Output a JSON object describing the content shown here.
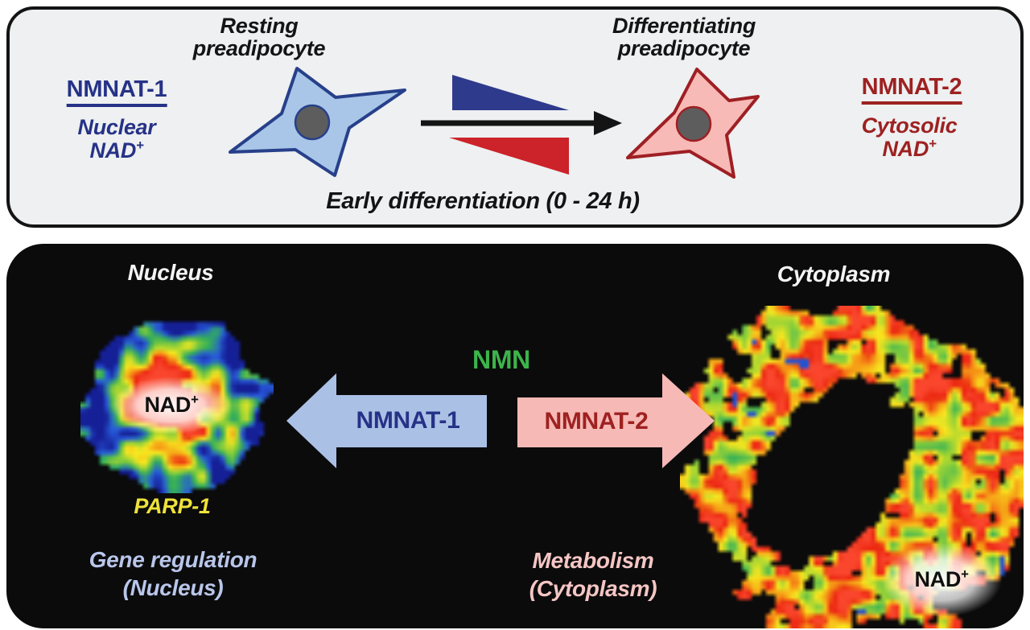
{
  "colors": {
    "panel_bg": "#eef0f1",
    "ink": "#141414",
    "navy": "#263287",
    "dark_red": "#9e2121",
    "wedge_blue": "#2e3a8c",
    "wedge_red": "#cc2229",
    "star_blue_fill": "#a9c6e8",
    "star_blue_stroke": "#27408b",
    "star_pink_fill": "#f7bab6",
    "star_pink_stroke": "#9e1f24",
    "cell_nucleus_gray": "#5d5d5d",
    "green": "#3cb54a",
    "blue_arrow": "#abc0e5",
    "pink_arrow": "#f6b9b5",
    "periwinkle": "#b9c6ea",
    "light_pink": "#f5c6c4",
    "yellow": "#efe23a"
  },
  "upper_panel": {
    "resting_label": {
      "line1": "Resting",
      "line2": "preadipocyte"
    },
    "differentiating_label": {
      "line1": "Differentiating",
      "line2": "preadipocyte"
    },
    "nmnat1": {
      "title": "NMNAT-1",
      "line1": "Nuclear",
      "nad_base": "NAD",
      "nad_sup": "+"
    },
    "nmnat2": {
      "title": "NMNAT-2",
      "line1": "Cytosolic",
      "nad_base": "NAD",
      "nad_sup": "+"
    },
    "timeline_label": "Early differentiation (0 - 24 h)"
  },
  "lower_panel": {
    "nucleus_heading": "Nucleus",
    "cytoplasm_heading": "Cytoplasm",
    "nmn_label": "NMN",
    "nmnat1_arrow_label": "NMNAT-1",
    "nmnat2_arrow_label": "NMNAT-2",
    "nuclear_nad": {
      "base": "NAD",
      "sup": "+"
    },
    "cytoplasmic_nad": {
      "base": "NAD",
      "sup": "+"
    },
    "parp_label": "PARP-1",
    "gene_regulation": {
      "line1": "Gene regulation",
      "line2": "(Nucleus)"
    },
    "metabolism": {
      "line1": "Metabolism",
      "line2": "(Cytoplasm)"
    }
  }
}
